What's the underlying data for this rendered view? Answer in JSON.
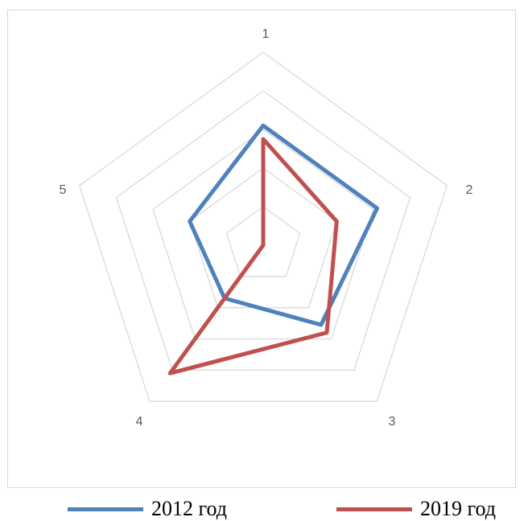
{
  "chart_data": {
    "type": "radar",
    "axes": [
      "1",
      "2",
      "3",
      "4",
      "5"
    ],
    "rmax": 5,
    "rings": [
      1,
      2,
      3,
      4,
      5
    ],
    "grid": true,
    "legend_position": "bottom",
    "series": [
      {
        "name": "2012 год",
        "values": [
          3.1,
          3.1,
          2.55,
          1.7,
          2.0
        ],
        "color": "#4f81bd"
      },
      {
        "name": "2019 год",
        "values": [
          2.75,
          2.0,
          2.8,
          4.1,
          0.0
        ],
        "color": "#c0504d"
      }
    ]
  }
}
